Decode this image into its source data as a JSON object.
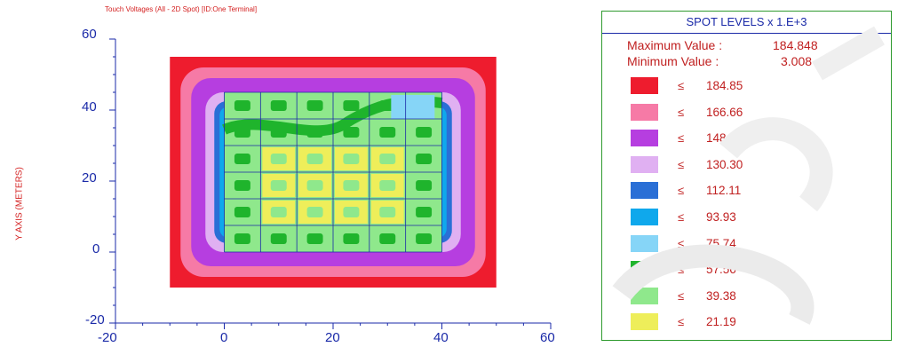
{
  "title": "Touch Voltages (All - 2D Spot) [ID:One Terminal]",
  "ylabel": "Y AXIS (METERS)",
  "legend": {
    "title": "SPOT LEVELS x 1.E+3",
    "max_label": "Maximum Value :",
    "max_value": "184.848",
    "min_label": "Minimum Value :",
    "min_value": "3.008",
    "symbol": "≤",
    "levels": [
      {
        "value": "184.85",
        "color": "#ee1c2e"
      },
      {
        "value": "166.66",
        "color": "#f67aa6"
      },
      {
        "value": "148.48",
        "color": "#b63ee0"
      },
      {
        "value": "130.30",
        "color": "#e0b0f2"
      },
      {
        "value": "112.11",
        "color": "#2a6fd6"
      },
      {
        "value": "93.93",
        "color": "#0fa8ec"
      },
      {
        "value": "75.74",
        "color": "#86d5f7"
      },
      {
        "value": "57.56",
        "color": "#1fb42c"
      },
      {
        "value": "39.38",
        "color": "#8fe88c"
      },
      {
        "value": "21.19",
        "color": "#eeee5a"
      }
    ]
  },
  "chart_data": {
    "type": "heatmap",
    "title": "Touch Voltages (All - 2D Spot) [ID:One Terminal]",
    "xlabel": "",
    "ylabel": "Y AXIS (METERS)",
    "xlim": [
      -20,
      60
    ],
    "ylim": [
      -20,
      60
    ],
    "xticks": [
      "-20",
      "0",
      "20",
      "40",
      "60"
    ],
    "yticks": [
      "60",
      "40",
      "20",
      "0",
      "-20"
    ],
    "grid_extent": {
      "x": [
        -10,
        50
      ],
      "y": [
        -10,
        55
      ]
    },
    "conductor_grid_extent": {
      "x": [
        0,
        40
      ],
      "y": [
        0,
        45
      ]
    },
    "scale_multiplier": "x 1.E+3",
    "max_value": 184.848,
    "min_value": 3.008,
    "legend_placement": "right"
  }
}
